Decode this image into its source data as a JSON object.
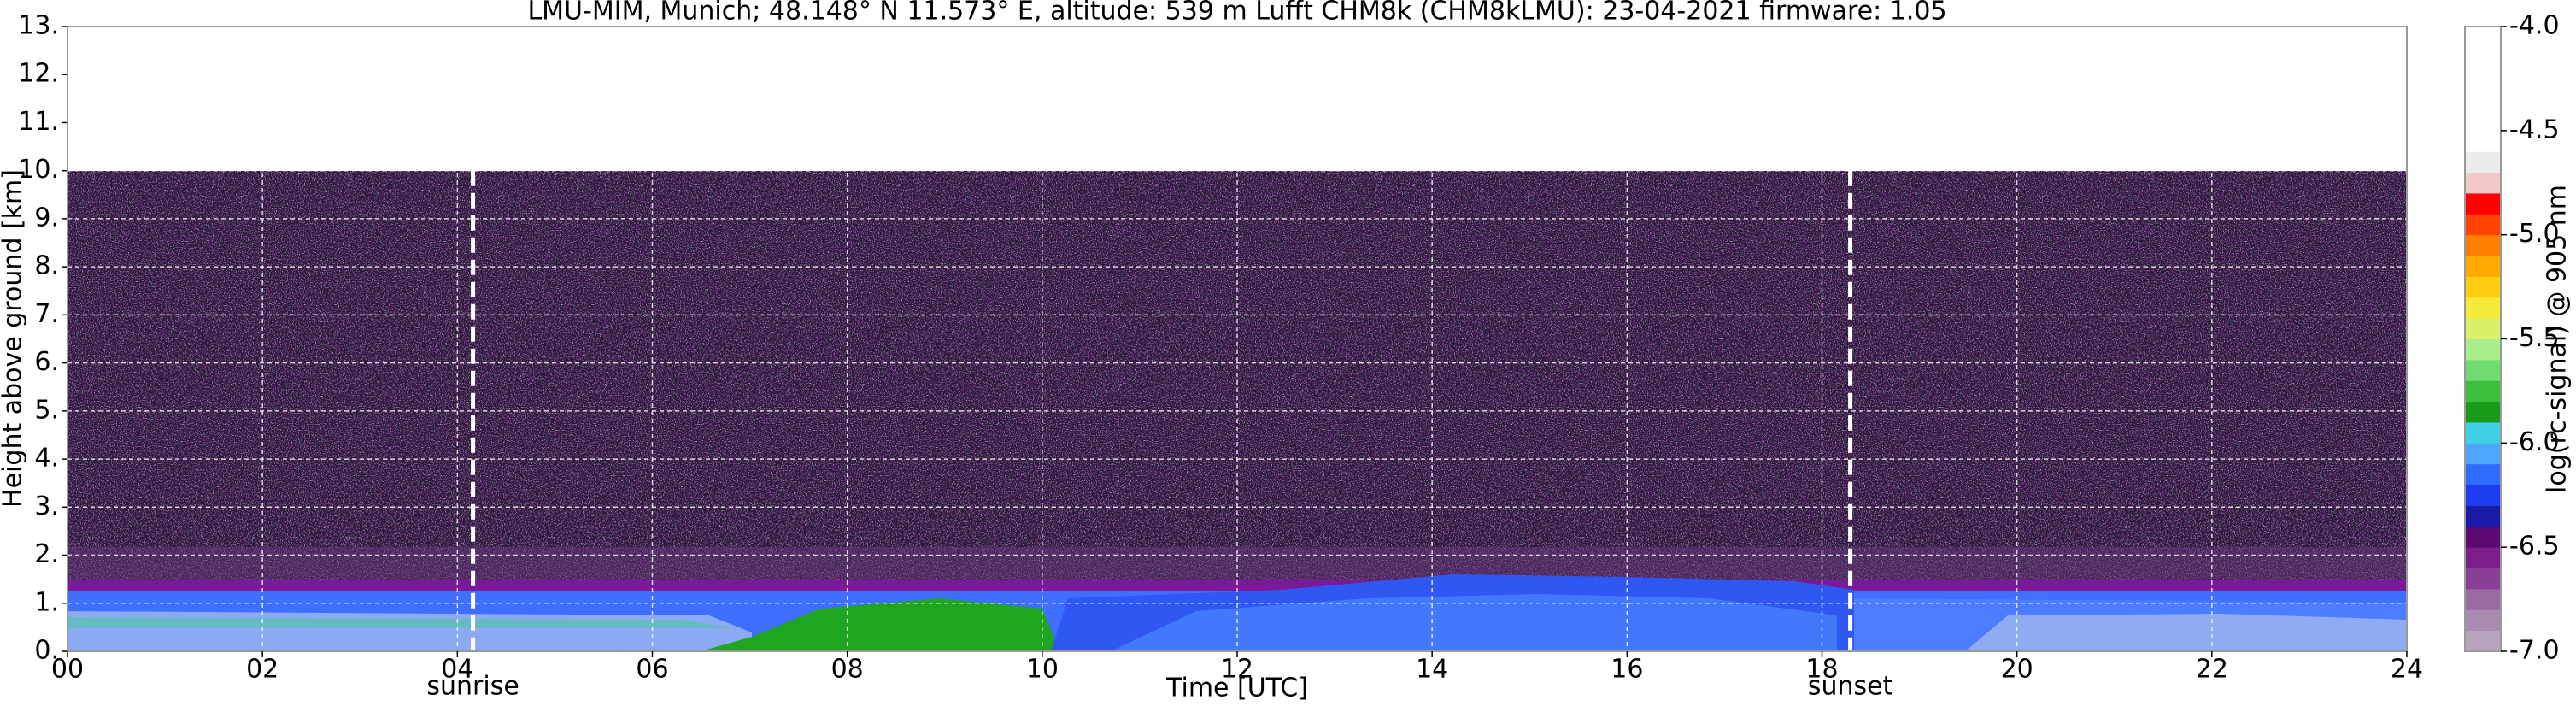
{
  "chart_data": {
    "type": "heatmap",
    "title": "LMU-MIM, Munich; 48.148° N 11.573° E, altitude: 539 m    Lufft CHM8k (CHM8kLMU): 23-04-2021    firmware: 1.05",
    "x_label": "Time [UTC]",
    "y_label": "Height above ground [km]",
    "xlim": [
      0,
      24
    ],
    "xticks": [
      {
        "value": 0,
        "label": "00"
      },
      {
        "value": 2,
        "label": "02"
      },
      {
        "value": 4,
        "label": "04"
      },
      {
        "value": 6,
        "label": "06"
      },
      {
        "value": 8,
        "label": "08"
      },
      {
        "value": 10,
        "label": "10"
      },
      {
        "value": 12,
        "label": "12"
      },
      {
        "value": 14,
        "label": "14"
      },
      {
        "value": 16,
        "label": "16"
      },
      {
        "value": 18,
        "label": "18"
      },
      {
        "value": 20,
        "label": "20"
      },
      {
        "value": 22,
        "label": "22"
      },
      {
        "value": 24,
        "label": "24"
      }
    ],
    "ylim": [
      0,
      13
    ],
    "yticks": [
      {
        "value": 0,
        "label": "0."
      },
      {
        "value": 1,
        "label": "1."
      },
      {
        "value": 2,
        "label": "2."
      },
      {
        "value": 3,
        "label": "3."
      },
      {
        "value": 4,
        "label": "4."
      },
      {
        "value": 5,
        "label": "5."
      },
      {
        "value": 6,
        "label": "6."
      },
      {
        "value": 7,
        "label": "7."
      },
      {
        "value": 8,
        "label": "8."
      },
      {
        "value": 9,
        "label": "9."
      },
      {
        "value": 10,
        "label": "10."
      },
      {
        "value": 11,
        "label": "11."
      },
      {
        "value": 12,
        "label": "12."
      },
      {
        "value": 13,
        "label": "13."
      }
    ],
    "grid": true,
    "annotations": [
      {
        "label": "sunrise",
        "x": 4.16
      },
      {
        "label": "sunset",
        "x": 18.29
      }
    ],
    "colorbar": {
      "label": "log(rc-signal) @ 905 nm",
      "clim": [
        -7,
        -4
      ],
      "ticks": [
        {
          "value": -7,
          "label": "-7.0"
        },
        {
          "value": -6.5,
          "label": "-6.5"
        },
        {
          "value": -6,
          "label": "-6.0"
        },
        {
          "value": -5.5,
          "label": "-5.5"
        },
        {
          "value": -5,
          "label": "-5.0"
        },
        {
          "value": -4.5,
          "label": "-4.5"
        },
        {
          "value": -4,
          "label": "-4.0"
        }
      ],
      "colors": [
        "#b8a4bd",
        "#a98ab1",
        "#9a6aa3",
        "#8a3f96",
        "#7a1e88",
        "#5b0a74",
        "#1a1aa8",
        "#1e3cf0",
        "#2f6cff",
        "#4ea6ff",
        "#3fd0e8",
        "#1a9a1a",
        "#3cbf3c",
        "#6fdc6f",
        "#a8ee8a",
        "#d8f06a",
        "#f5ea3a",
        "#ffcc11",
        "#ffaa00",
        "#ff7f00",
        "#ff4400",
        "#ff0000",
        "#f4c8c8",
        "#ececec",
        "#ffffff",
        "#ffffff",
        "#ffffff",
        "#ffffff",
        "#ffffff",
        "#ffffff"
      ]
    }
  }
}
